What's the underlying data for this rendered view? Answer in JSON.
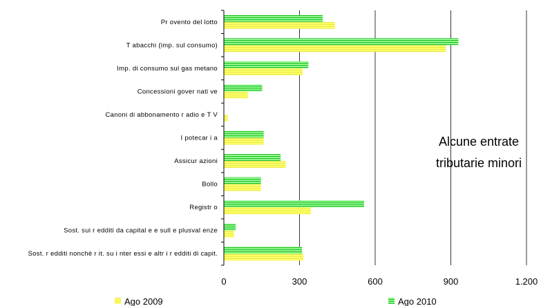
{
  "chart_data": {
    "type": "bar",
    "orientation": "horizontal",
    "categories": [
      "Pr ovento del lotto",
      "T abacchi (imp. sul consumo)",
      "Imp. di consumo sul gas metano",
      "Concessioni gover nati ve",
      "Canoni di abbonamento r adio e T V",
      "I potecar i a",
      "Assicur azioni",
      "Bollo",
      "Registr o",
      "Sost. sui r edditi da capital e e sull e plusval enze",
      "Sost. r edditi nonchè r it. su i nter essi e altr i r edditi di capit."
    ],
    "series": [
      {
        "name": "Ago 2009",
        "color": "#ffff66",
        "stripe": "#e6e64d",
        "values": [
          440,
          880,
          312,
          95,
          15,
          158,
          245,
          147,
          345,
          40,
          315
        ]
      },
      {
        "name": "Ago 2010",
        "color": "#33cc33",
        "stripe": "#99ff99",
        "values": [
          392,
          930,
          335,
          152,
          0,
          158,
          225,
          147,
          556,
          47,
          310
        ]
      }
    ],
    "xlim": [
      0,
      1200
    ],
    "ticks": [
      "0",
      "300",
      "600",
      "900",
      "1.200"
    ],
    "tick_values": [
      0,
      300,
      600,
      900,
      1200
    ],
    "grid": "vertical",
    "legend_position": "bottom",
    "annotation": [
      "Alcune entrate",
      "tributarie minori"
    ]
  }
}
